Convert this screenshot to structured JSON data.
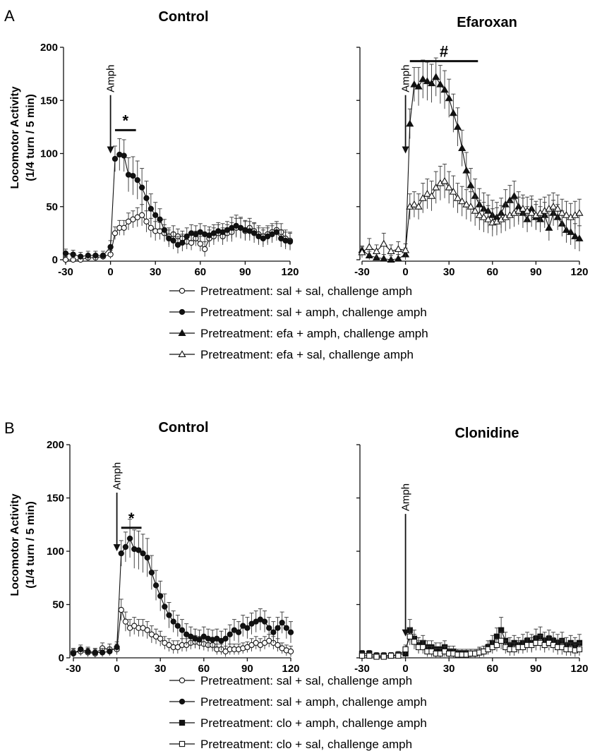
{
  "panels": [
    {
      "letter": "A"
    },
    {
      "letter": "B"
    }
  ],
  "ylabel_line1": "Locomotor Activity",
  "ylabel_line2": "(1/4 turn / 5 min)",
  "legend_a": [
    "Pretreatment: sal + sal, challenge amph",
    "Pretreatment: sal + amph, challenge amph",
    "Pretreatment: efa + amph, challenge amph",
    "Pretreatment: efa + sal, challenge amph"
  ],
  "legend_b": [
    "Pretreatment: sal + sal, challenge amph",
    "Pretreatment: sal + amph, challenge amph",
    "Pretreatment: clo + amph, challenge amph",
    "Pretreatment: clo + sal, challenge amph"
  ],
  "chart_data": [
    {
      "type": "line",
      "panel": "A",
      "title": "Control",
      "xlabel": "",
      "ylabel": "Locomotor Activity (1/4 turn / 5 min)",
      "xlim": [
        -30,
        120
      ],
      "ylim": [
        0,
        200
      ],
      "xticks": [
        "-30",
        "0",
        "30",
        "60",
        "90",
        "120"
      ],
      "yticks": [
        "0",
        "50",
        "100",
        "150",
        "200"
      ],
      "annotations": {
        "arrow": "Amph",
        "arrow_x": 0,
        "sig": "*",
        "sig_range": [
          3,
          17
        ]
      },
      "x": [
        -30,
        -25,
        -20,
        -15,
        -10,
        -5,
        0,
        3,
        6,
        9,
        12,
        15,
        18,
        21,
        24,
        27,
        30,
        33,
        36,
        39,
        42,
        45,
        48,
        51,
        54,
        57,
        60,
        63,
        66,
        69,
        72,
        75,
        78,
        81,
        84,
        87,
        90,
        93,
        96,
        99,
        102,
        105,
        108,
        111,
        114,
        117,
        120
      ],
      "series": [
        {
          "marker": "open-circle",
          "values": [
            0,
            0,
            0,
            2,
            2,
            3,
            5,
            25,
            30,
            30,
            36,
            38,
            40,
            42,
            36,
            30,
            27,
            27,
            25,
            22,
            24,
            22,
            20,
            17,
            16,
            20,
            15,
            10,
            20,
            22,
            25,
            22,
            25,
            26,
            30,
            30,
            27,
            30,
            27,
            24,
            22,
            24,
            26,
            28,
            26,
            20,
            18
          ],
          "errors": [
            3,
            3,
            3,
            3,
            3,
            3,
            4,
            6,
            7,
            7,
            8,
            8,
            9,
            10,
            10,
            9,
            9,
            8,
            8,
            8,
            8,
            7,
            7,
            7,
            7,
            7,
            7,
            7,
            8,
            8,
            8,
            8,
            8,
            9,
            9,
            9,
            9,
            9,
            8,
            8,
            8,
            8,
            8,
            8,
            8,
            8,
            8
          ]
        },
        {
          "marker": "filled-circle",
          "values": [
            6,
            5,
            3,
            4,
            4,
            4,
            12,
            95,
            99,
            98,
            80,
            79,
            75,
            68,
            58,
            48,
            42,
            38,
            28,
            20,
            18,
            14,
            16,
            22,
            25,
            24,
            26,
            24,
            23,
            25,
            27,
            26,
            28,
            30,
            32,
            30,
            28,
            27,
            25,
            22,
            20,
            22,
            24,
            26,
            20,
            18,
            17
          ],
          "errors": [
            4,
            4,
            4,
            4,
            4,
            4,
            6,
            12,
            15,
            15,
            16,
            18,
            18,
            18,
            16,
            14,
            12,
            10,
            10,
            8,
            8,
            8,
            8,
            8,
            8,
            8,
            8,
            8,
            8,
            8,
            8,
            8,
            8,
            10,
            10,
            10,
            9,
            9,
            9,
            8,
            8,
            8,
            8,
            8,
            8,
            8,
            8
          ]
        }
      ]
    },
    {
      "type": "line",
      "panel": "A",
      "title": "Efaroxan",
      "xlim": [
        -30,
        120
      ],
      "ylim": [
        0,
        200
      ],
      "xticks": [
        "-30",
        "0",
        "30",
        "60",
        "90",
        "120"
      ],
      "yticks": [],
      "annotations": {
        "arrow": "Amph",
        "arrow_x": 0,
        "sig": "#",
        "sig_range": [
          3,
          50
        ]
      },
      "x": [
        -30,
        -25,
        -20,
        -15,
        -10,
        -5,
        0,
        3,
        6,
        9,
        12,
        15,
        18,
        21,
        24,
        27,
        30,
        33,
        36,
        39,
        42,
        45,
        48,
        51,
        54,
        57,
        60,
        63,
        66,
        69,
        72,
        75,
        78,
        81,
        84,
        87,
        90,
        93,
        96,
        99,
        102,
        105,
        108,
        111,
        114,
        117,
        120
      ],
      "series": [
        {
          "marker": "filled-triangle",
          "values": [
            9,
            4,
            2,
            1,
            0,
            1,
            5,
            128,
            165,
            163,
            170,
            168,
            166,
            172,
            165,
            160,
            152,
            138,
            125,
            105,
            84,
            70,
            60,
            52,
            48,
            46,
            42,
            40,
            44,
            52,
            56,
            60,
            50,
            44,
            38,
            48,
            40,
            38,
            42,
            30,
            44,
            40,
            34,
            28,
            26,
            22,
            20
          ],
          "errors": [
            4,
            4,
            4,
            4,
            4,
            4,
            6,
            14,
            16,
            18,
            18,
            18,
            18,
            18,
            18,
            18,
            18,
            18,
            18,
            17,
            17,
            16,
            16,
            15,
            15,
            15,
            14,
            14,
            14,
            14,
            14,
            14,
            14,
            14,
            12,
            12,
            12,
            12,
            12,
            12,
            12,
            12,
            12,
            12,
            12,
            12,
            12
          ]
        },
        {
          "marker": "open-triangle",
          "values": [
            7,
            12,
            8,
            15,
            8,
            10,
            9,
            50,
            52,
            50,
            58,
            62,
            60,
            68,
            72,
            74,
            68,
            64,
            58,
            55,
            52,
            50,
            46,
            42,
            40,
            38,
            35,
            36,
            38,
            40,
            42,
            44,
            46,
            48,
            46,
            44,
            42,
            44,
            46,
            48,
            50,
            48,
            44,
            42,
            40,
            42,
            44
          ],
          "errors": [
            5,
            8,
            6,
            10,
            6,
            7,
            6,
            12,
            12,
            12,
            14,
            14,
            14,
            15,
            16,
            16,
            15,
            15,
            14,
            14,
            14,
            14,
            14,
            14,
            14,
            13,
            13,
            13,
            13,
            13,
            13,
            13,
            13,
            13,
            13,
            13,
            13,
            13,
            13,
            13,
            13,
            13,
            13,
            13,
            13,
            13,
            13
          ]
        }
      ]
    },
    {
      "type": "line",
      "panel": "B",
      "title": "Control",
      "xlim": [
        -30,
        120
      ],
      "ylim": [
        0,
        200
      ],
      "xticks": [
        "-30",
        "0",
        "30",
        "60",
        "90",
        "120"
      ],
      "yticks": [
        "0",
        "50",
        "100",
        "150",
        "200"
      ],
      "annotations": {
        "arrow": "Amph",
        "arrow_x": 0,
        "sig": "*",
        "sig_range": [
          3,
          17
        ]
      },
      "x": [
        -30,
        -25,
        -20,
        -15,
        -10,
        -5,
        0,
        3,
        6,
        9,
        12,
        15,
        18,
        21,
        24,
        27,
        30,
        33,
        36,
        39,
        42,
        45,
        48,
        51,
        54,
        57,
        60,
        63,
        66,
        69,
        72,
        75,
        78,
        81,
        84,
        87,
        90,
        93,
        96,
        99,
        102,
        105,
        108,
        111,
        114,
        117,
        120
      ],
      "series": [
        {
          "marker": "open-circle",
          "values": [
            5,
            6,
            5,
            4,
            9,
            8,
            8,
            45,
            34,
            28,
            30,
            28,
            28,
            26,
            22,
            20,
            18,
            14,
            12,
            10,
            10,
            12,
            12,
            14,
            15,
            14,
            13,
            12,
            12,
            8,
            8,
            6,
            8,
            8,
            8,
            9,
            10,
            12,
            14,
            12,
            14,
            16,
            14,
            12,
            9,
            7,
            6
          ],
          "errors": [
            4,
            4,
            4,
            4,
            5,
            5,
            5,
            10,
            9,
            8,
            8,
            8,
            8,
            8,
            8,
            7,
            7,
            6,
            6,
            6,
            6,
            6,
            6,
            6,
            6,
            6,
            6,
            6,
            6,
            5,
            5,
            5,
            5,
            5,
            5,
            5,
            5,
            6,
            6,
            6,
            6,
            6,
            6,
            6,
            5,
            5,
            5
          ]
        },
        {
          "marker": "filled-circle",
          "values": [
            4,
            8,
            6,
            5,
            5,
            6,
            10,
            98,
            104,
            112,
            102,
            101,
            98,
            94,
            80,
            68,
            58,
            48,
            40,
            34,
            30,
            26,
            22,
            20,
            18,
            17,
            20,
            18,
            17,
            18,
            16,
            18,
            22,
            26,
            24,
            30,
            28,
            32,
            34,
            36,
            34,
            28,
            24,
            28,
            33,
            28,
            24
          ],
          "errors": [
            4,
            4,
            4,
            4,
            4,
            4,
            5,
            12,
            14,
            18,
            18,
            18,
            18,
            18,
            16,
            14,
            14,
            12,
            12,
            10,
            10,
            10,
            10,
            9,
            9,
            9,
            9,
            9,
            9,
            9,
            9,
            9,
            9,
            10,
            10,
            10,
            10,
            10,
            10,
            10,
            10,
            10,
            10,
            10,
            10,
            10,
            10
          ]
        }
      ]
    },
    {
      "type": "line",
      "panel": "B",
      "title": "Clonidine",
      "xlim": [
        -30,
        120
      ],
      "ylim": [
        0,
        200
      ],
      "xticks": [
        "-30",
        "0",
        "30",
        "60",
        "90",
        "120"
      ],
      "yticks": [],
      "annotations": {
        "arrow": "Amph",
        "arrow_x": 0
      },
      "x": [
        -30,
        -25,
        -20,
        -15,
        -10,
        -5,
        0,
        3,
        6,
        9,
        12,
        15,
        18,
        21,
        24,
        27,
        30,
        33,
        36,
        39,
        42,
        45,
        48,
        51,
        54,
        57,
        60,
        63,
        66,
        69,
        72,
        75,
        78,
        81,
        84,
        87,
        90,
        93,
        96,
        99,
        102,
        105,
        108,
        111,
        114,
        117,
        120
      ],
      "series": [
        {
          "marker": "filled-square",
          "values": [
            4,
            4,
            2,
            2,
            2,
            3,
            4,
            26,
            18,
            12,
            14,
            10,
            10,
            8,
            8,
            10,
            6,
            6,
            4,
            4,
            4,
            4,
            4,
            5,
            6,
            10,
            14,
            20,
            26,
            16,
            12,
            14,
            12,
            14,
            16,
            14,
            18,
            20,
            16,
            18,
            16,
            14,
            16,
            12,
            14,
            12,
            14
          ],
          "errors": [
            3,
            3,
            3,
            3,
            3,
            3,
            4,
            10,
            8,
            7,
            7,
            6,
            6,
            6,
            6,
            6,
            5,
            5,
            4,
            4,
            4,
            4,
            4,
            5,
            5,
            6,
            7,
            8,
            12,
            8,
            7,
            7,
            7,
            8,
            8,
            8,
            9,
            9,
            8,
            8,
            8,
            8,
            8,
            7,
            7,
            7,
            8
          ]
        },
        {
          "marker": "open-square",
          "values": [
            2,
            2,
            1,
            1,
            2,
            2,
            8,
            20,
            15,
            10,
            10,
            6,
            6,
            4,
            4,
            6,
            4,
            4,
            3,
            3,
            3,
            4,
            4,
            5,
            6,
            8,
            10,
            12,
            16,
            10,
            8,
            8,
            10,
            10,
            12,
            12,
            14,
            14,
            12,
            14,
            12,
            10,
            10,
            8,
            8,
            7,
            8
          ],
          "errors": [
            3,
            3,
            3,
            3,
            3,
            3,
            4,
            8,
            7,
            6,
            6,
            5,
            5,
            5,
            5,
            5,
            4,
            4,
            4,
            4,
            4,
            4,
            4,
            4,
            5,
            5,
            6,
            6,
            8,
            6,
            6,
            6,
            6,
            6,
            7,
            7,
            7,
            7,
            7,
            7,
            7,
            7,
            7,
            6,
            6,
            6,
            6
          ]
        }
      ]
    }
  ]
}
